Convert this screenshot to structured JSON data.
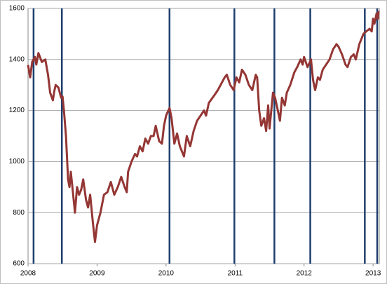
{
  "chart_data": {
    "type": "line",
    "x": [
      2008.0,
      2008.03,
      2008.06,
      2008.1,
      2008.12,
      2008.15,
      2008.2,
      2008.25,
      2008.29,
      2008.32,
      2008.36,
      2008.38,
      2008.4,
      2008.44,
      2008.48,
      2008.5,
      2008.52,
      2008.55,
      2008.58,
      2008.6,
      2008.62,
      2008.65,
      2008.68,
      2008.71,
      2008.74,
      2008.77,
      2008.8,
      2008.84,
      2008.87,
      2008.9,
      2008.94,
      2008.97,
      2009.0,
      2009.05,
      2009.1,
      2009.15,
      2009.2,
      2009.25,
      2009.3,
      2009.35,
      2009.4,
      2009.43,
      2009.45,
      2009.5,
      2009.55,
      2009.58,
      2009.62,
      2009.66,
      2009.7,
      2009.74,
      2009.78,
      2009.82,
      2009.85,
      2009.9,
      2009.94,
      2009.97,
      2010.0,
      2010.05,
      2010.08,
      2010.12,
      2010.16,
      2010.2,
      2010.26,
      2010.3,
      2010.35,
      2010.4,
      2010.45,
      2010.5,
      2010.55,
      2010.58,
      2010.62,
      2010.7,
      2010.75,
      2010.85,
      2010.88,
      2010.93,
      2010.98,
      2011.02,
      2011.06,
      2011.1,
      2011.15,
      2011.2,
      2011.25,
      2011.3,
      2011.32,
      2011.35,
      2011.38,
      2011.42,
      2011.45,
      2011.48,
      2011.5,
      2011.55,
      2011.58,
      2011.62,
      2011.65,
      2011.68,
      2011.72,
      2011.75,
      2011.8,
      2011.86,
      2011.9,
      2011.95,
      2011.98,
      2012.0,
      2012.05,
      2012.1,
      2012.13,
      2012.16,
      2012.2,
      2012.23,
      2012.27,
      2012.32,
      2012.37,
      2012.42,
      2012.47,
      2012.5,
      2012.55,
      2012.6,
      2012.63,
      2012.68,
      2012.72,
      2012.75,
      2012.8,
      2012.86,
      2012.9,
      2012.95,
      2012.98,
      2013.0,
      2013.02,
      2013.05,
      2013.07,
      2013.08
    ],
    "series": [
      {
        "color": "#943634",
        "values": [
          1378,
          1330,
          1390,
          1410,
          1380,
          1425,
          1390,
          1400,
          1340,
          1270,
          1240,
          1275,
          1300,
          1290,
          1250,
          1255,
          1200,
          1100,
          930,
          900,
          960,
          880,
          800,
          900,
          870,
          890,
          930,
          850,
          820,
          870,
          760,
          685,
          750,
          800,
          870,
          880,
          920,
          870,
          900,
          940,
          900,
          880,
          960,
          1000,
          1030,
          1020,
          1060,
          1040,
          1090,
          1070,
          1100,
          1100,
          1140,
          1080,
          1070,
          1140,
          1180,
          1210,
          1170,
          1070,
          1110,
          1060,
          1020,
          1100,
          1060,
          1120,
          1160,
          1180,
          1200,
          1180,
          1230,
          1260,
          1280,
          1330,
          1340,
          1300,
          1280,
          1330,
          1310,
          1360,
          1340,
          1300,
          1280,
          1340,
          1330,
          1200,
          1140,
          1170,
          1120,
          1220,
          1130,
          1270,
          1250,
          1200,
          1160,
          1250,
          1220,
          1270,
          1300,
          1350,
          1370,
          1400,
          1380,
          1410,
          1370,
          1400,
          1320,
          1280,
          1330,
          1320,
          1360,
          1380,
          1400,
          1440,
          1460,
          1450,
          1420,
          1380,
          1370,
          1410,
          1420,
          1400,
          1460,
          1500,
          1510,
          1520,
          1510,
          1560,
          1540,
          1580,
          1560,
          1590
        ]
      }
    ],
    "vertical_lines": {
      "color": "#1f3f6f",
      "x": [
        2008.08,
        2008.49,
        2010.05,
        2010.99,
        2011.57,
        2012.09,
        2012.88,
        2013.06
      ]
    },
    "xlim": [
      2008,
      2013.09
    ],
    "xticks": [
      2008,
      2009,
      2010,
      2011,
      2012,
      2013
    ],
    "ylim": [
      600,
      1600
    ],
    "yticks": [
      600,
      800,
      1000,
      1200,
      1400,
      1600
    ],
    "grid": true
  }
}
